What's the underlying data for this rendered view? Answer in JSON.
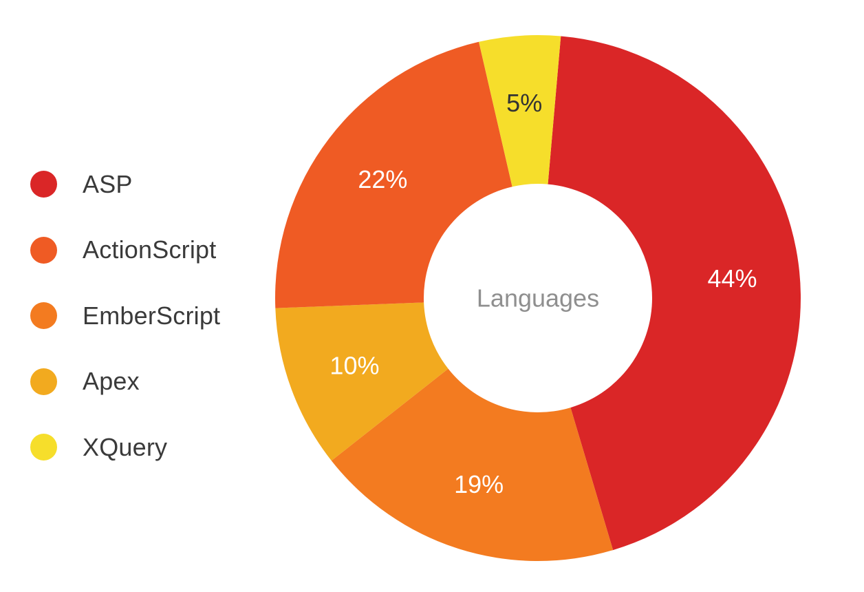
{
  "chart_data": {
    "type": "pie",
    "variant": "donut",
    "center_label": "Languages",
    "legend_position": "left",
    "slices": [
      {
        "name": "ASP",
        "value": 44,
        "label": "44%",
        "color": "#da2627",
        "label_color": "#ffffff"
      },
      {
        "name": "EmberScript",
        "value": 19,
        "label": "19%",
        "color": "#f37b20",
        "label_color": "#ffffff"
      },
      {
        "name": "Apex",
        "value": 10,
        "label": "10%",
        "color": "#f2aa1f",
        "label_color": "#ffffff"
      },
      {
        "name": "ActionScript",
        "value": 22,
        "label": "22%",
        "color": "#ef5b24",
        "label_color": "#ffffff"
      },
      {
        "name": "XQuery",
        "value": 5,
        "label": "5%",
        "color": "#f6de2b",
        "label_color": "#333333"
      }
    ],
    "legend": [
      {
        "name": "ASP",
        "color": "#da2627"
      },
      {
        "name": "ActionScript",
        "color": "#ef5b24"
      },
      {
        "name": "EmberScript",
        "color": "#f37b20"
      },
      {
        "name": "Apex",
        "color": "#f2aa1f"
      },
      {
        "name": "XQuery",
        "color": "#f6de2b"
      }
    ],
    "colors": {
      "center_label": "#8f8f8f",
      "legend_text": "#3a3a3a"
    }
  }
}
